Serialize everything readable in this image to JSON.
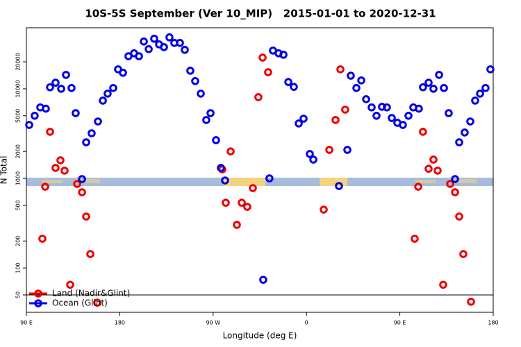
{
  "chart_data": {
    "type": "scatter",
    "title": "10S-5S September (Ver 10_MIP)   2015-01-01 to 2020-12-31",
    "x_label": "Longitude (deg E)",
    "y_label": "N Total",
    "log_y": true,
    "legend": "lower left",
    "xlim": [
      90,
      540
    ],
    "xticks": [
      {
        "value": 90,
        "label": "90 E"
      },
      {
        "value": 180,
        "label": "180"
      },
      {
        "value": 270,
        "label": "90 W"
      },
      {
        "value": 360,
        "label": "0"
      },
      {
        "value": 450,
        "label": "90 E"
      },
      {
        "value": 540,
        "label": "180"
      }
    ],
    "ylim": [
      32,
      48000
    ],
    "yticks": [
      50,
      100,
      200,
      500,
      1000,
      2000,
      5000,
      10000,
      20000
    ],
    "series": [
      {
        "name": "Land (Nadir&Glint)",
        "color": "#ee0000",
        "x": [
          105.4,
          108.1,
          112.8,
          118.1,
          122.8,
          126.8,
          132.2,
          138.9,
          143.6,
          147.6,
          151.6,
          158.3,
          278.8,
          282.2,
          286.9,
          292.9,
          297.6,
          302.9,
          308.3,
          313.6,
          317.7,
          323.0,
          376.6,
          382.0,
          388.0,
          392.7,
          397.3,
          464.3,
          467.7,
          472.3,
          477.7,
          482.4,
          486.4,
          491.8,
          498.5,
          503.2,
          507.2,
          511.2,
          518.6
        ],
        "values": [
          212,
          807,
          3310,
          1310,
          1590,
          1220,
          65,
          867,
          700,
          375,
          143,
          41,
          1260,
          535,
          2000,
          303,
          535,
          481,
          779,
          8070,
          22300,
          15300,
          448,
          2080,
          4480,
          16500,
          5850,
          212,
          807,
          3310,
          1280,
          1620,
          1220,
          65,
          867,
          700,
          375,
          143,
          42
        ]
      },
      {
        "name": "Ocean (Glint)",
        "color": "#0000e6",
        "x": [
          92.7,
          98.0,
          103.4,
          108.7,
          112.8,
          118.1,
          123.5,
          128.2,
          133.5,
          137.5,
          143.6,
          147.6,
          152.9,
          159.0,
          163.7,
          168.3,
          173.7,
          178.4,
          183.1,
          188.4,
          193.8,
          198.5,
          203.2,
          207.9,
          213.2,
          217.9,
          222.6,
          227.9,
          232.6,
          238.0,
          242.7,
          248.0,
          252.7,
          258.1,
          263.4,
          267.5,
          272.8,
          277.5,
          281.5,
          318.3,
          324.3,
          327.7,
          333.1,
          337.8,
          342.5,
          347.8,
          352.5,
          357.2,
          363.2,
          366.6,
          391.3,
          399.4,
          402.7,
          408.1,
          412.8,
          417.5,
          422.8,
          427.5,
          432.8,
          437.5,
          442.2,
          447.6,
          452.9,
          458.3,
          463.0,
          468.3,
          472.3,
          477.7,
          482.4,
          487.8,
          492.5,
          497.1,
          503.2,
          507.2,
          512.5,
          517.9,
          522.6,
          527.3,
          532.6,
          537.3
        ],
        "values": [
          3950,
          5000,
          6200,
          6000,
          10400,
          11700,
          10000,
          14300,
          10200,
          5350,
          982,
          2530,
          3190,
          4320,
          7380,
          8830,
          10200,
          16500,
          15100,
          23100,
          24900,
          23100,
          33700,
          27700,
          36200,
          31300,
          29200,
          37500,
          32500,
          32500,
          27200,
          15900,
          12200,
          8830,
          4480,
          5350,
          2670,
          1310,
          948,
          73.8,
          1000,
          26700,
          24900,
          24000,
          11900,
          10500,
          4100,
          4640,
          1870,
          1620,
          822,
          2080,
          14000,
          10200,
          12400,
          7650,
          6200,
          5000,
          6290,
          6200,
          4720,
          4170,
          3950,
          5000,
          6200,
          6000,
          10400,
          11700,
          10000,
          14300,
          10200,
          5350,
          982,
          2530,
          3250,
          4320,
          7380,
          8830,
          10200,
          16500
        ]
      }
    ]
  }
}
